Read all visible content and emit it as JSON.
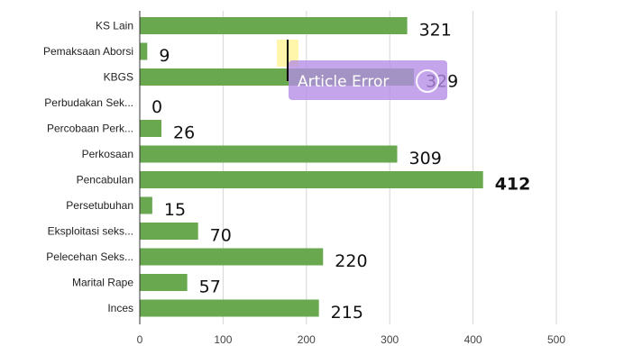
{
  "chart_data": {
    "type": "bar",
    "orientation": "horizontal",
    "categories": [
      "KS Lain",
      "Pemaksaan Aborsi",
      "KBGS",
      "Perbudakan Sek...",
      "Percobaan Perk...",
      "Perkosaan",
      "Pencabulan",
      "Persetubuhan",
      "Eksploitasi seks...",
      "Pelecehan Seks...",
      "Marital Rape",
      "Inces"
    ],
    "values": [
      321,
      9,
      329,
      0,
      26,
      309,
      412,
      15,
      70,
      220,
      57,
      215
    ],
    "value_labels": [
      "321",
      "9",
      "329",
      "0",
      "26",
      "309",
      "412",
      "15",
      "70",
      "220",
      "57",
      "215"
    ],
    "bold_label_index": 6,
    "xlim": [
      0,
      500
    ],
    "x_ticks": [
      0,
      100,
      200,
      300,
      400,
      500
    ],
    "x_tick_labels": [
      "0",
      "100",
      "200",
      "300",
      "400",
      "500"
    ],
    "grid": "vertical",
    "legend": "none",
    "title": "",
    "xlabel": "",
    "ylabel": ""
  },
  "colors": {
    "bar": "#6aa84f",
    "grid": "#d6d6d6",
    "overlay_box": "#b48ce6",
    "highlight": "#fff59d"
  },
  "overlay": {
    "text": "Article Error",
    "icon": "circle-icon"
  }
}
